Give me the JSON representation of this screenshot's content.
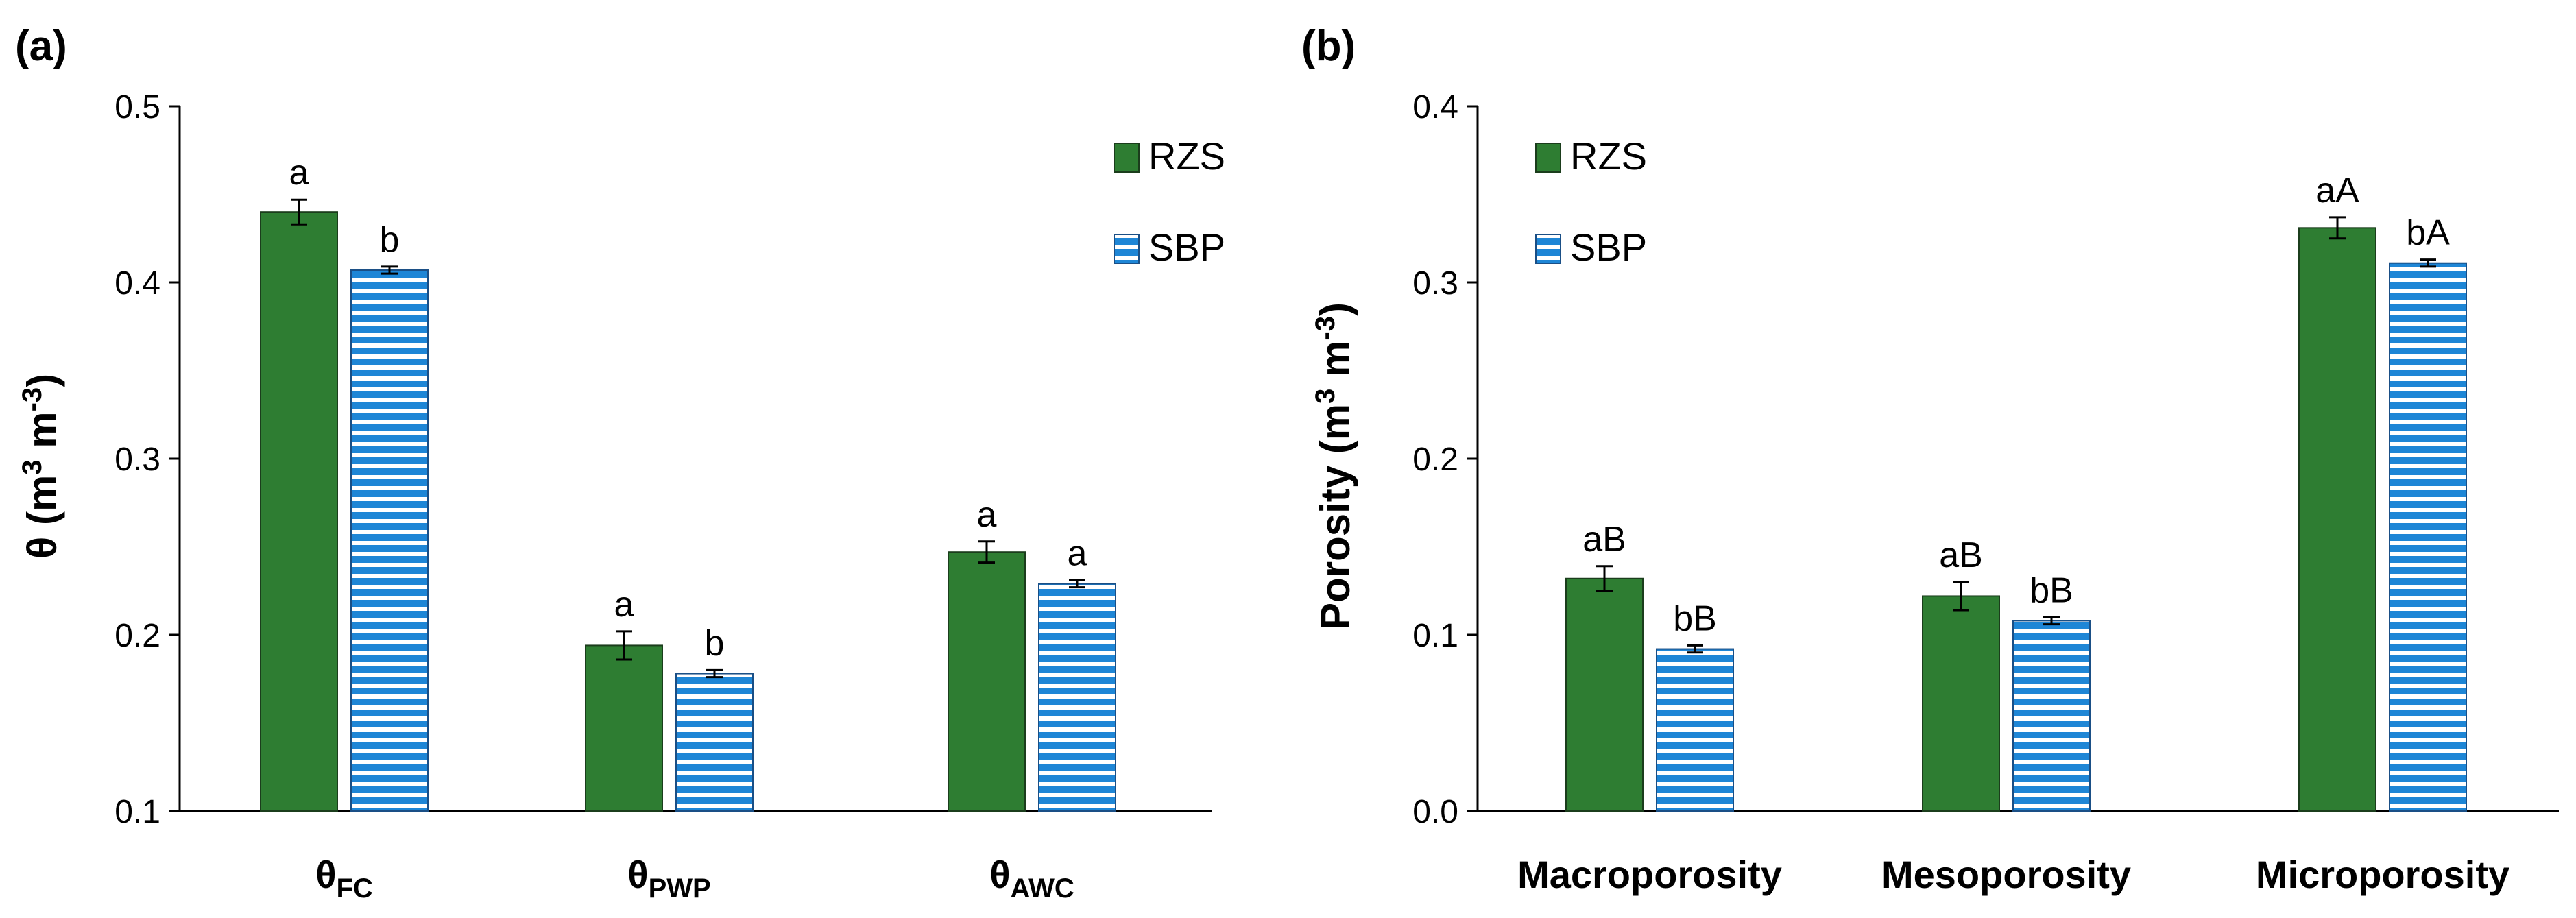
{
  "colors": {
    "rzs": "#2e7d32",
    "sbp_fill": "#1e86d6",
    "sbp_stripe": "#ffffff",
    "axis": "#000000"
  },
  "chart_data": [
    {
      "panel": "(a)",
      "type": "bar",
      "ylabel_main": "θ (m",
      "ylabel_sup1": "3",
      "ylabel_mid": " m",
      "ylabel_sup2": "-3",
      "ylabel_end": ")",
      "ylim": [
        0.1,
        0.5
      ],
      "yticks": [
        "0.1",
        "0.2",
        "0.3",
        "0.4",
        "0.5"
      ],
      "categories": [
        {
          "base": "θ",
          "sub": "FC"
        },
        {
          "base": "θ",
          "sub": "PWP"
        },
        {
          "base": "θ",
          "sub": "AWC"
        }
      ],
      "series": [
        {
          "name": "RZS",
          "values": [
            0.44,
            0.194,
            0.247
          ],
          "errors": [
            0.007,
            0.008,
            0.006
          ],
          "labels": [
            "a",
            "a",
            "a"
          ]
        },
        {
          "name": "SBP",
          "values": [
            0.407,
            0.178,
            0.229
          ],
          "errors": [
            0.002,
            0.002,
            0.002
          ],
          "labels": [
            "b",
            "b",
            "a"
          ]
        }
      ],
      "legend": "top-right"
    },
    {
      "panel": "(b)",
      "type": "bar",
      "ylabel_main": "Porosity (m",
      "ylabel_sup1": "3",
      "ylabel_mid": " m",
      "ylabel_sup2": "-3",
      "ylabel_end": ")",
      "ylim": [
        0.0,
        0.4
      ],
      "yticks": [
        "0.0",
        "0.1",
        "0.2",
        "0.3",
        "0.4"
      ],
      "categories": [
        {
          "base": "Macroporosity",
          "sub": ""
        },
        {
          "base": "Mesoporosity",
          "sub": ""
        },
        {
          "base": "Microporosity",
          "sub": ""
        }
      ],
      "series": [
        {
          "name": "RZS",
          "values": [
            0.132,
            0.122,
            0.331
          ],
          "errors": [
            0.007,
            0.008,
            0.006
          ],
          "labels": [
            "aB",
            "aB",
            "aA"
          ]
        },
        {
          "name": "SBP",
          "values": [
            0.092,
            0.108,
            0.311
          ],
          "errors": [
            0.002,
            0.002,
            0.002
          ],
          "labels": [
            "bB",
            "bB",
            "bA"
          ]
        }
      ],
      "legend": "top-left"
    }
  ]
}
